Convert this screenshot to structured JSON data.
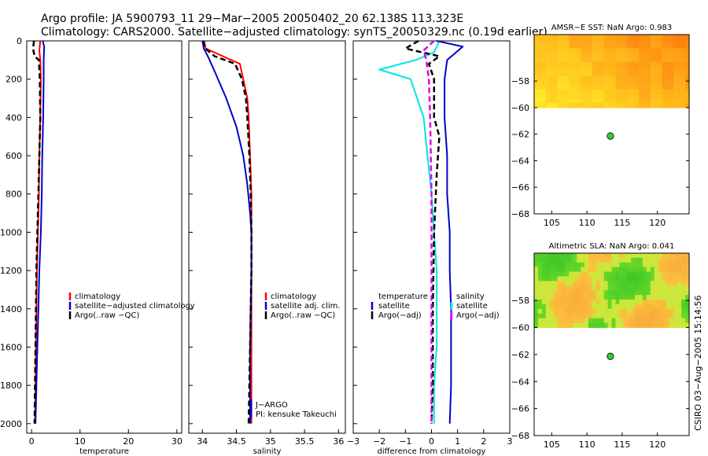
{
  "header": {
    "line1": "Argo profile: JA 5900793_11 29−Mar−2005 20050402_20 62.138S 113.323E",
    "line2": "Climatology: CARS2000. Satellite−adjusted climatology: synTS_20050329.nc (0.19d earlier)"
  },
  "side_note": "CSIRO 03−Aug−2005 15:14:56",
  "colors": {
    "climatology": "#ff0000",
    "satellite": "#0000cc",
    "argo": "#000000",
    "temp_diff": "#00e5e5",
    "sal_diff": "#0000cc",
    "argo_adj": "#e600e6",
    "float_marker": "#33cc33"
  },
  "chart_data": [
    {
      "type": "line",
      "id": "temperature",
      "xlabel": "temperature",
      "xlim": [
        -1,
        31
      ],
      "ylim": [
        2050,
        0
      ],
      "xticks": [
        0,
        10,
        20,
        30
      ],
      "yticks": [
        0,
        200,
        400,
        600,
        800,
        1000,
        1200,
        1400,
        1600,
        1800,
        2000
      ],
      "legend": [
        "climatology",
        "satellite−adjusted climatology",
        "Argo(..raw −QC)"
      ],
      "series": [
        {
          "name": "climatology",
          "style": "red",
          "points": [
            [
              1.8,
              0
            ],
            [
              1.6,
              50
            ],
            [
              1.8,
              100
            ],
            [
              1.9,
              200
            ],
            [
              1.8,
              400
            ],
            [
              1.6,
              600
            ],
            [
              1.5,
              800
            ],
            [
              1.3,
              1000
            ],
            [
              1.1,
              1200
            ],
            [
              1.0,
              1400
            ],
            [
              0.9,
              1600
            ],
            [
              0.8,
              1800
            ],
            [
              0.7,
              2000
            ]
          ]
        },
        {
          "name": "satellite",
          "style": "blue",
          "points": [
            [
              2.3,
              0
            ],
            [
              2.6,
              30
            ],
            [
              2.5,
              100
            ],
            [
              2.5,
              200
            ],
            [
              2.4,
              400
            ],
            [
              2.2,
              600
            ],
            [
              2.1,
              800
            ],
            [
              1.9,
              1000
            ],
            [
              1.6,
              1200
            ],
            [
              1.4,
              1400
            ],
            [
              1.2,
              1600
            ],
            [
              1.0,
              1800
            ],
            [
              0.8,
              2000
            ]
          ]
        },
        {
          "name": "argo",
          "style": "black-dashed",
          "points": [
            [
              0.5,
              0
            ],
            [
              0.3,
              40
            ],
            [
              0.6,
              80
            ],
            [
              1.5,
              100
            ],
            [
              1.7,
              200
            ],
            [
              1.8,
              400
            ],
            [
              1.6,
              600
            ],
            [
              1.4,
              800
            ],
            [
              1.2,
              1000
            ],
            [
              1.0,
              1200
            ],
            [
              0.9,
              1400
            ],
            [
              0.8,
              1600
            ],
            [
              0.7,
              1800
            ],
            [
              0.6,
              2000
            ]
          ]
        }
      ]
    },
    {
      "type": "line",
      "id": "salinity",
      "xlabel": "salinity",
      "xlim": [
        33.8,
        36.1
      ],
      "ylim": [
        2050,
        0
      ],
      "xticks": [
        34,
        34.5,
        35,
        35.5,
        36
      ],
      "legend": [
        "climatology",
        "satellite adj. clim.",
        "Argo(..raw −QC)"
      ],
      "annotation": [
        "J−ARGO",
        "PI: kensuke Takeuchi"
      ],
      "series": [
        {
          "name": "climatology",
          "style": "red",
          "points": [
            [
              34.02,
              0
            ],
            [
              34.05,
              40
            ],
            [
              34.3,
              80
            ],
            [
              34.55,
              120
            ],
            [
              34.6,
              200
            ],
            [
              34.66,
              300
            ],
            [
              34.68,
              400
            ],
            [
              34.7,
              600
            ],
            [
              34.72,
              800
            ],
            [
              34.72,
              1000
            ],
            [
              34.72,
              1200
            ],
            [
              34.72,
              1400
            ],
            [
              34.72,
              1600
            ],
            [
              34.72,
              1800
            ],
            [
              34.72,
              2000
            ]
          ]
        },
        {
          "name": "satellite",
          "style": "blue",
          "points": [
            [
              34.0,
              0
            ],
            [
              34.02,
              40
            ],
            [
              34.08,
              80
            ],
            [
              34.18,
              160
            ],
            [
              34.35,
              300
            ],
            [
              34.5,
              450
            ],
            [
              34.6,
              600
            ],
            [
              34.66,
              750
            ],
            [
              34.7,
              900
            ],
            [
              34.72,
              1000
            ],
            [
              34.72,
              1200
            ],
            [
              34.71,
              1400
            ],
            [
              34.7,
              1600
            ],
            [
              34.7,
              1800
            ],
            [
              34.7,
              2000
            ]
          ]
        },
        {
          "name": "argo",
          "style": "black-dashed",
          "points": [
            [
              34.02,
              0
            ],
            [
              34.04,
              40
            ],
            [
              34.18,
              80
            ],
            [
              34.48,
              120
            ],
            [
              34.58,
              200
            ],
            [
              34.64,
              300
            ],
            [
              34.66,
              400
            ],
            [
              34.69,
              600
            ],
            [
              34.71,
              800
            ],
            [
              34.72,
              1000
            ],
            [
              34.72,
              1200
            ],
            [
              34.71,
              1400
            ],
            [
              34.7,
              1600
            ],
            [
              34.69,
              1800
            ],
            [
              34.68,
              2000
            ]
          ]
        }
      ]
    },
    {
      "type": "line",
      "id": "difference",
      "xlabel": "difference from climatology",
      "xlim": [
        -3,
        3
      ],
      "ylim": [
        2050,
        0
      ],
      "xticks": [
        -3,
        -2,
        -1,
        0,
        1,
        2,
        3
      ],
      "legend_left_title": "temperature",
      "legend_right_title": "salinity",
      "legend_left": [
        "satellite",
        "Argo(−adj)"
      ],
      "legend_right": [
        "satellite",
        "Argo(−adj)"
      ],
      "series": [
        {
          "name": "temperature satellite",
          "style": "cyan",
          "points": [
            [
              0.3,
              0
            ],
            [
              0.1,
              60
            ],
            [
              -0.6,
              100
            ],
            [
              -2.0,
              150
            ],
            [
              -0.8,
              200
            ],
            [
              -0.3,
              400
            ],
            [
              0.0,
              800
            ],
            [
              0.1,
              1000
            ],
            [
              0.2,
              1200
            ],
            [
              0.2,
              1400
            ],
            [
              0.2,
              1600
            ],
            [
              0.1,
              1800
            ],
            [
              0.1,
              2000
            ]
          ]
        },
        {
          "name": "salinity satellite",
          "style": "blue",
          "points": [
            [
              0.2,
              0
            ],
            [
              1.2,
              30
            ],
            [
              0.6,
              100
            ],
            [
              0.5,
              200
            ],
            [
              0.5,
              400
            ],
            [
              0.6,
              600
            ],
            [
              0.6,
              800
            ],
            [
              0.7,
              1000
            ],
            [
              0.7,
              1200
            ],
            [
              0.75,
              1400
            ],
            [
              0.75,
              1600
            ],
            [
              0.75,
              1800
            ],
            [
              0.7,
              2000
            ]
          ]
        },
        {
          "name": "temperature argo",
          "style": "black-dashed",
          "points": [
            [
              -0.5,
              0
            ],
            [
              -1.0,
              40
            ],
            [
              0.3,
              80
            ],
            [
              -0.1,
              120
            ],
            [
              0.1,
              200
            ],
            [
              0.1,
              400
            ],
            [
              0.3,
              500
            ],
            [
              0.2,
              700
            ],
            [
              0.1,
              1000
            ],
            [
              0.05,
              1400
            ],
            [
              0.05,
              1800
            ],
            [
              0.0,
              2000
            ]
          ]
        },
        {
          "name": "salinity argo",
          "style": "magenta-dashed",
          "points": [
            [
              0.1,
              0
            ],
            [
              -0.3,
              50
            ],
            [
              -0.2,
              100
            ],
            [
              -0.1,
              200
            ],
            [
              -0.05,
              400
            ],
            [
              0.0,
              800
            ],
            [
              0.0,
              1200
            ],
            [
              0.0,
              1600
            ],
            [
              0.0,
              2000
            ]
          ]
        }
      ]
    },
    {
      "type": "heatmap",
      "id": "sst",
      "title": "AMSR−E SST: NaN Argo: 0.983",
      "xlim": [
        102.5,
        124.5
      ],
      "ylim": [
        -68,
        -54.5
      ],
      "xticks": [
        105,
        110,
        115,
        120
      ],
      "yticks": [
        -58,
        -60,
        -62,
        -64,
        -66,
        -68
      ],
      "data_extent": {
        "lat_min": -60,
        "lat_max": -54.5
      },
      "float": {
        "lon": 113.323,
        "lat": -62.138
      }
    },
    {
      "type": "heatmap",
      "id": "sla",
      "title": "Altimetric SLA: NaN Argo: 0.041",
      "xlim": [
        102.5,
        124.5
      ],
      "ylim": [
        -68,
        -54.5
      ],
      "xticks": [
        105,
        110,
        115,
        120
      ],
      "yticks": [
        -58,
        -60,
        -62,
        -64,
        -66,
        -68
      ],
      "data_extent": {
        "lat_min": -60,
        "lat_max": -54.5
      },
      "float": {
        "lon": 113.323,
        "lat": -62.138
      }
    }
  ]
}
